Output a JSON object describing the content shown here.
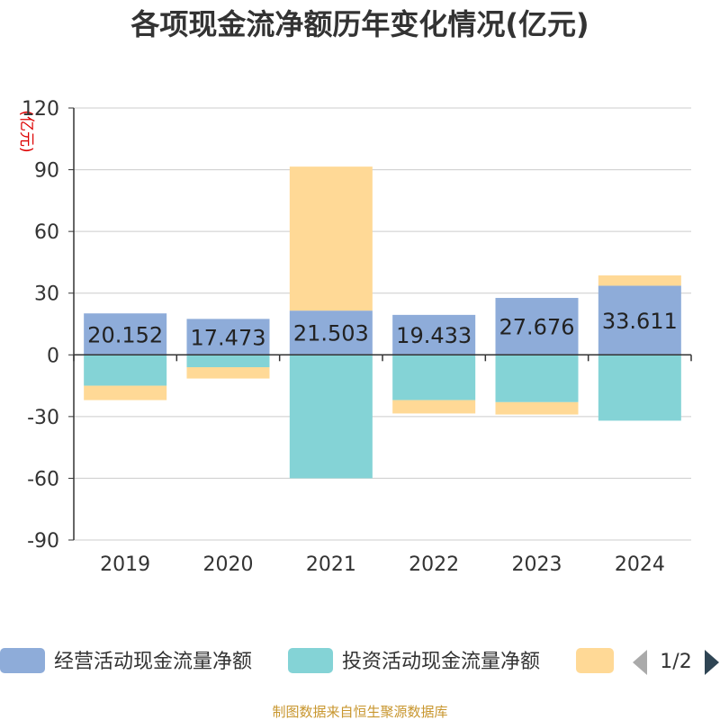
{
  "colors": {
    "operating": "#8eacd9",
    "investing": "#84d3d6",
    "financing": "#ffd996",
    "unit_text": "#dd0000",
    "source_text": "#c8962e",
    "pager_active": "#2f4554",
    "pager_inactive": "#aaaaaa"
  },
  "icons": {
    "prev": "triangle-left-icon",
    "next": "triangle-right-icon"
  },
  "legend": {
    "page": "1/2"
  },
  "source": "制图数据来自恒生聚源数据库",
  "chart_data": {
    "type": "bar",
    "stacked": true,
    "title": "各项现金流净额历年变化情况(亿元)",
    "ylabel": "(亿元)",
    "xlabel": "",
    "categories": [
      "2019",
      "2020",
      "2021",
      "2022",
      "2023",
      "2024"
    ],
    "ylim": [
      -90,
      120
    ],
    "yticks": [
      120,
      90,
      60,
      30,
      0,
      -30,
      -60,
      -90
    ],
    "grid": true,
    "legend_position": "bottom",
    "series": [
      {
        "name": "经营活动现金流量净额",
        "values": [
          20.152,
          17.473,
          21.503,
          19.433,
          27.676,
          33.611
        ],
        "labels": [
          "20.152",
          "17.473",
          "21.503",
          "19.433",
          "27.676",
          "33.611"
        ]
      },
      {
        "name": "投资活动现金流量净额",
        "values": [
          -15,
          -6,
          -60,
          -22,
          -23,
          -32
        ]
      },
      {
        "name": "",
        "values": [
          -7,
          -5.5,
          70,
          -6.5,
          -6,
          5
        ]
      }
    ]
  }
}
